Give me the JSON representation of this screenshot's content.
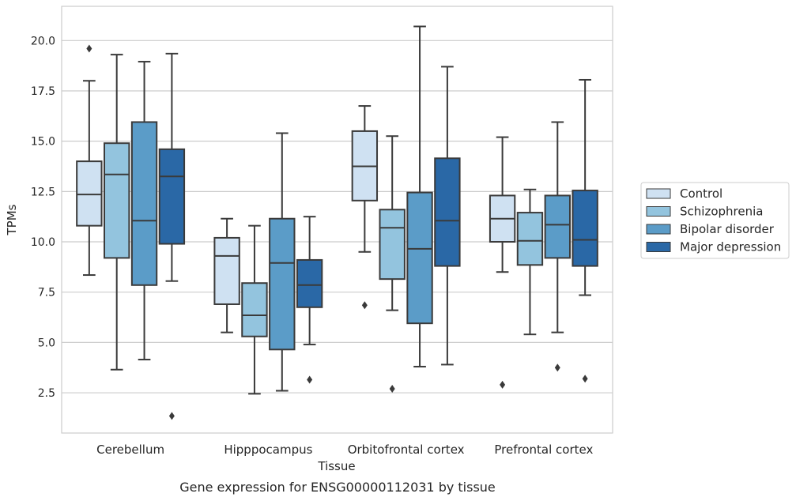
{
  "chart_data": {
    "type": "box",
    "caption": "Gene expression for ENSG00000112031 by tissue",
    "xlabel": "Tissue",
    "ylabel": "TPMs",
    "ylim": [
      0.5,
      21.7
    ],
    "yticks": [
      2.5,
      5.0,
      7.5,
      10.0,
      12.5,
      15.0,
      17.5,
      20.0
    ],
    "ytick_labels": [
      "2.5",
      "5.0",
      "7.5",
      "10.0",
      "12.5",
      "15.0",
      "17.5",
      "20.0"
    ],
    "grid": "horizontal",
    "legend_position": "right",
    "categories": [
      "Cerebellum",
      "Hipppocampus",
      "Orbitofrontal cortex",
      "Prefrontal cortex"
    ],
    "series": [
      {
        "name": "Control",
        "color": "#cfe1f2",
        "boxes": [
          {
            "whislo": 8.35,
            "q1": 10.8,
            "med": 12.35,
            "q3": 14.0,
            "whishi": 18.0,
            "fliers": [
              19.6
            ]
          },
          {
            "whislo": 5.5,
            "q1": 6.9,
            "med": 9.3,
            "q3": 10.2,
            "whishi": 11.15,
            "fliers": []
          },
          {
            "whislo": 9.5,
            "q1": 12.05,
            "med": 13.75,
            "q3": 15.5,
            "whishi": 16.75,
            "fliers": [
              6.85
            ]
          },
          {
            "whislo": 8.5,
            "q1": 10.0,
            "med": 11.15,
            "q3": 12.3,
            "whishi": 15.2,
            "fliers": [
              2.9
            ]
          }
        ]
      },
      {
        "name": "Schizophrenia",
        "color": "#93c4de",
        "boxes": [
          {
            "whislo": 3.65,
            "q1": 9.2,
            "med": 13.35,
            "q3": 14.9,
            "whishi": 19.3,
            "fliers": []
          },
          {
            "whislo": 2.45,
            "q1": 5.3,
            "med": 6.35,
            "q3": 7.95,
            "whishi": 10.8,
            "fliers": []
          },
          {
            "whislo": 6.6,
            "q1": 8.15,
            "med": 10.7,
            "q3": 11.6,
            "whishi": 15.25,
            "fliers": [
              2.7
            ]
          },
          {
            "whislo": 5.4,
            "q1": 8.85,
            "med": 10.05,
            "q3": 11.45,
            "whishi": 12.6,
            "fliers": []
          }
        ]
      },
      {
        "name": "Bipolar disorder",
        "color": "#5b9cc8",
        "boxes": [
          {
            "whislo": 4.15,
            "q1": 7.85,
            "med": 11.05,
            "q3": 15.95,
            "whishi": 18.95,
            "fliers": []
          },
          {
            "whislo": 2.6,
            "q1": 4.65,
            "med": 8.95,
            "q3": 11.15,
            "whishi": 15.4,
            "fliers": []
          },
          {
            "whislo": 3.8,
            "q1": 5.95,
            "med": 9.65,
            "q3": 12.45,
            "whishi": 20.7,
            "fliers": []
          },
          {
            "whislo": 5.5,
            "q1": 9.2,
            "med": 10.85,
            "q3": 12.3,
            "whishi": 15.95,
            "fliers": [
              3.75
            ]
          }
        ]
      },
      {
        "name": "Major depression",
        "color": "#2a68a6",
        "boxes": [
          {
            "whislo": 8.05,
            "q1": 9.9,
            "med": 13.25,
            "q3": 14.6,
            "whishi": 19.35,
            "fliers": [
              1.35
            ]
          },
          {
            "whislo": 4.9,
            "q1": 6.75,
            "med": 7.85,
            "q3": 9.1,
            "whishi": 11.25,
            "fliers": [
              3.15
            ]
          },
          {
            "whislo": 3.9,
            "q1": 8.8,
            "med": 11.05,
            "q3": 14.15,
            "whishi": 18.7,
            "fliers": []
          },
          {
            "whislo": 7.35,
            "q1": 8.8,
            "med": 10.1,
            "q3": 12.55,
            "whishi": 18.05,
            "fliers": [
              3.2
            ]
          }
        ]
      }
    ]
  },
  "colors": {
    "edge": "#3a3a3a",
    "grid": "#cccccc",
    "frame": "#cccccc",
    "text": "#262626",
    "legend_border": "#cccccc"
  }
}
